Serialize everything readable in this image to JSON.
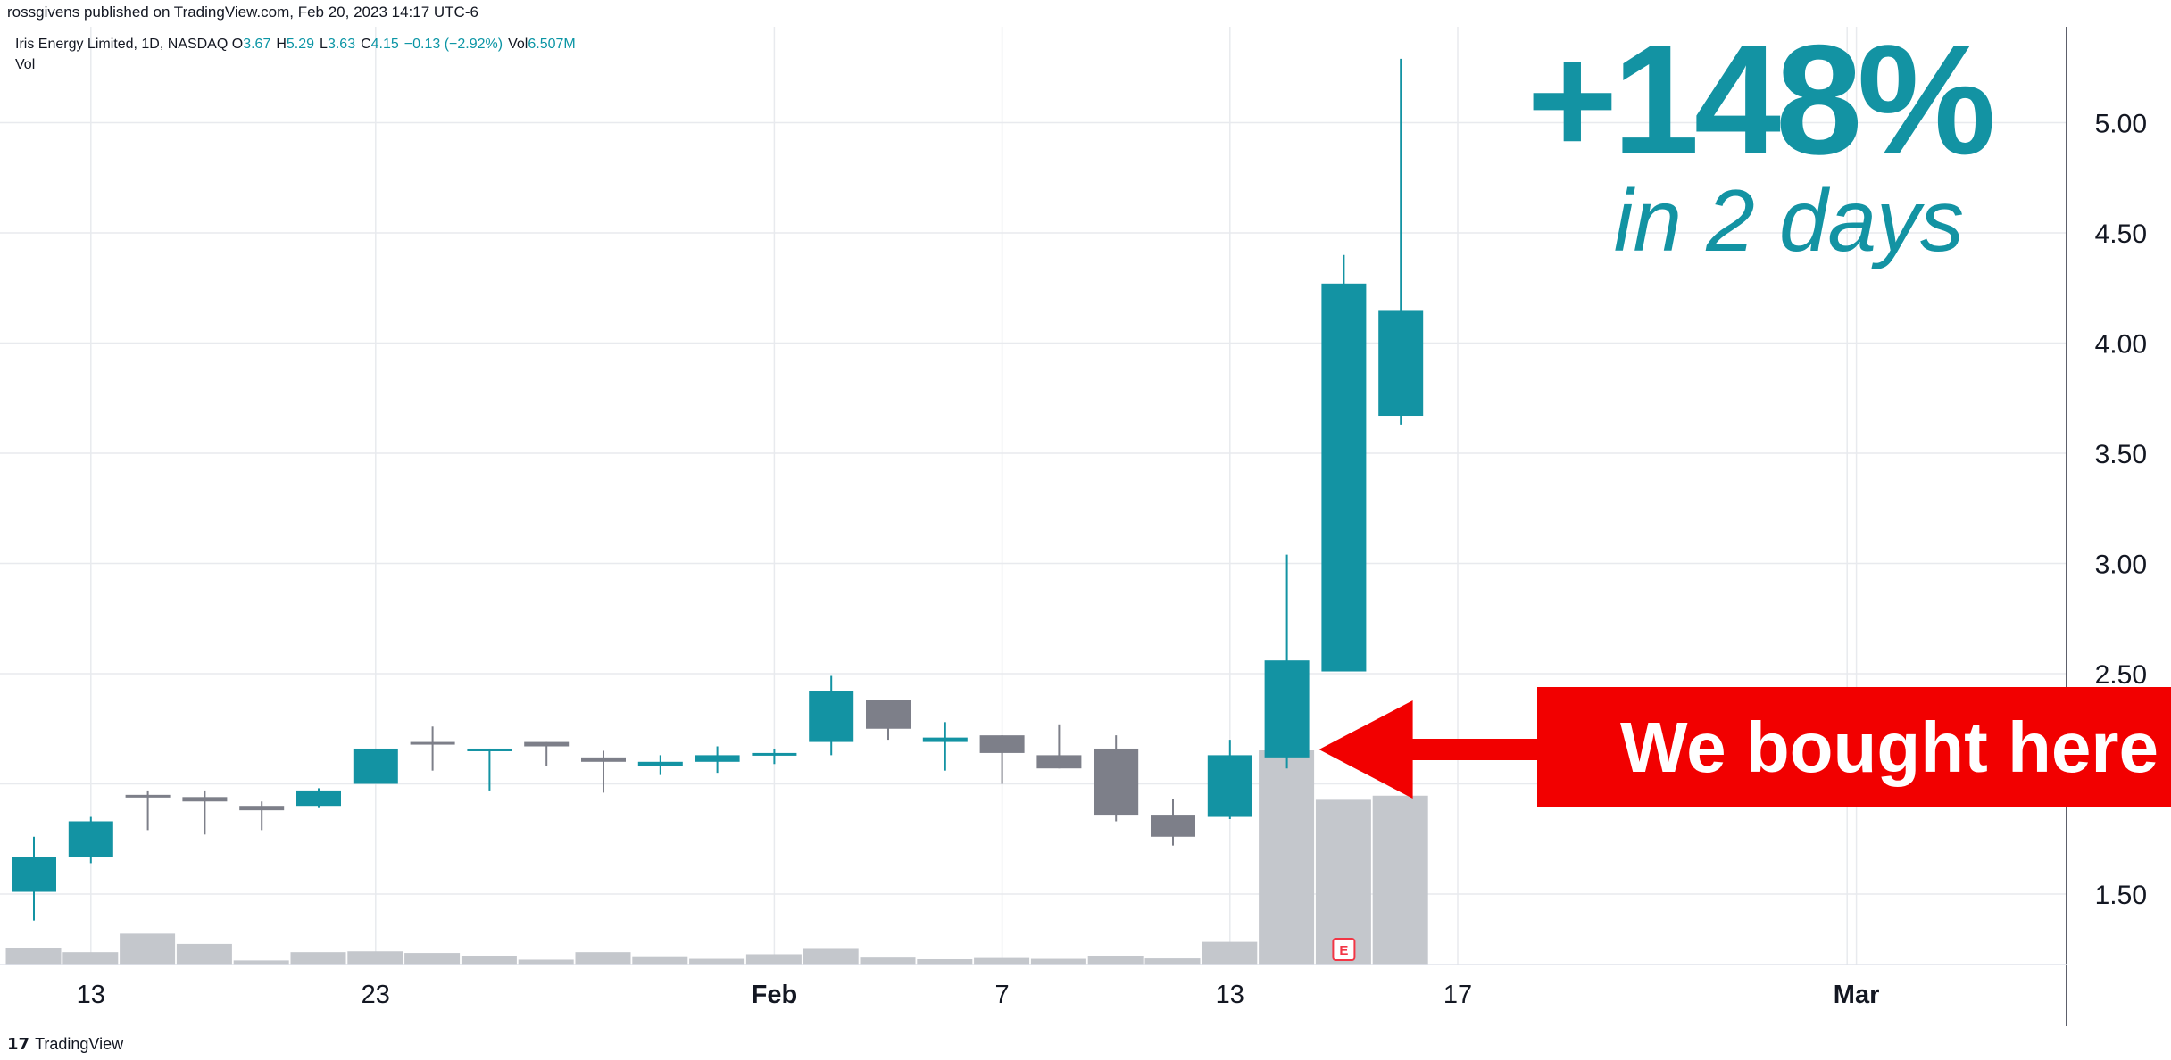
{
  "header": {
    "published": "rossgivens published on TradingView.com, Feb 20, 2023 14:17 UTC-6",
    "symbol": "Iris Energy Limited, 1D, NASDAQ",
    "ohlc": [
      {
        "k": "O",
        "v": "3.67"
      },
      {
        "k": "H",
        "v": "5.29"
      },
      {
        "k": "L",
        "v": "3.63"
      },
      {
        "k": "C",
        "v": "4.15"
      },
      {
        "k": "",
        "v": "−0.13 (−2.92%)"
      },
      {
        "k": "Vol",
        "v": "6.507M"
      }
    ],
    "vol_label": "Vol"
  },
  "annotations": {
    "headline": "+148%",
    "subhead": "in 2 days",
    "callout": "We bought here"
  },
  "footer": {
    "brand": "TradingView"
  },
  "colors": {
    "up": "#1393a3",
    "down": "#7d7f89",
    "volume": "#c4c7cc",
    "callout": "#f20000",
    "arrow": "#f20000"
  },
  "chart_data": {
    "type": "candlestick",
    "y_ticks": [
      "1.50",
      "2.00",
      "2.50",
      "3.00",
      "3.50",
      "4.00",
      "4.50",
      "5.00"
    ],
    "ylim": [
      1.35,
      5.35
    ],
    "x_ticks": [
      {
        "label": "13",
        "index": 1,
        "bold": false
      },
      {
        "label": "23",
        "index": 6,
        "bold": false
      },
      {
        "label": "Feb",
        "index": 13,
        "bold": true
      },
      {
        "label": "7",
        "index": 17,
        "bold": false
      },
      {
        "label": "13",
        "index": 21,
        "bold": false
      },
      {
        "label": "17",
        "index": 25,
        "bold": false
      },
      {
        "label": "Mar",
        "index": 32,
        "bold": true
      }
    ],
    "candles": [
      {
        "o": 1.51,
        "h": 1.76,
        "l": 1.38,
        "c": 1.67,
        "v": 0.4
      },
      {
        "o": 1.67,
        "h": 1.85,
        "l": 1.64,
        "c": 1.83,
        "v": 0.3
      },
      {
        "o": 1.95,
        "h": 1.97,
        "l": 1.79,
        "c": 1.94,
        "v": 0.75
      },
      {
        "o": 1.94,
        "h": 1.97,
        "l": 1.77,
        "c": 1.92,
        "v": 0.5
      },
      {
        "o": 1.9,
        "h": 1.92,
        "l": 1.79,
        "c": 1.88,
        "v": 0.1
      },
      {
        "o": 1.9,
        "h": 1.98,
        "l": 1.89,
        "c": 1.97,
        "v": 0.3
      },
      {
        "o": 2.0,
        "h": 2.16,
        "l": 2.0,
        "c": 2.16,
        "v": 0.32
      },
      {
        "o": 2.19,
        "h": 2.26,
        "l": 2.06,
        "c": 2.18,
        "v": 0.28
      },
      {
        "o": 2.15,
        "h": 2.16,
        "l": 1.97,
        "c": 2.16,
        "v": 0.2
      },
      {
        "o": 2.19,
        "h": 2.19,
        "l": 2.08,
        "c": 2.17,
        "v": 0.12
      },
      {
        "o": 2.12,
        "h": 2.15,
        "l": 1.96,
        "c": 2.1,
        "v": 0.3
      },
      {
        "o": 2.08,
        "h": 2.13,
        "l": 2.04,
        "c": 2.1,
        "v": 0.18
      },
      {
        "o": 2.1,
        "h": 2.17,
        "l": 2.05,
        "c": 2.13,
        "v": 0.14
      },
      {
        "o": 2.14,
        "h": 2.16,
        "l": 2.09,
        "c": 2.14,
        "v": 0.25
      },
      {
        "o": 2.19,
        "h": 2.49,
        "l": 2.13,
        "c": 2.42,
        "v": 0.38
      },
      {
        "o": 2.38,
        "h": 2.38,
        "l": 2.2,
        "c": 2.25,
        "v": 0.17
      },
      {
        "o": 2.19,
        "h": 2.28,
        "l": 2.06,
        "c": 2.21,
        "v": 0.13
      },
      {
        "o": 2.22,
        "h": 2.22,
        "l": 2.0,
        "c": 2.14,
        "v": 0.16
      },
      {
        "o": 2.13,
        "h": 2.27,
        "l": 2.07,
        "c": 2.07,
        "v": 0.14
      },
      {
        "o": 2.16,
        "h": 2.22,
        "l": 1.83,
        "c": 1.86,
        "v": 0.2
      },
      {
        "o": 1.86,
        "h": 1.93,
        "l": 1.72,
        "c": 1.76,
        "v": 0.15
      },
      {
        "o": 1.85,
        "h": 2.2,
        "l": 1.84,
        "c": 2.13,
        "v": 0.55
      },
      {
        "o": 2.12,
        "h": 3.04,
        "l": 2.07,
        "c": 2.56,
        "v": 5.2
      },
      {
        "o": 2.51,
        "h": 4.4,
        "l": 2.51,
        "c": 4.27,
        "v": 4.0
      },
      {
        "o": 3.67,
        "h": 5.29,
        "l": 3.63,
        "c": 4.15,
        "v": 4.1
      }
    ],
    "earnings_marker": {
      "label": "E",
      "index": 23
    }
  }
}
